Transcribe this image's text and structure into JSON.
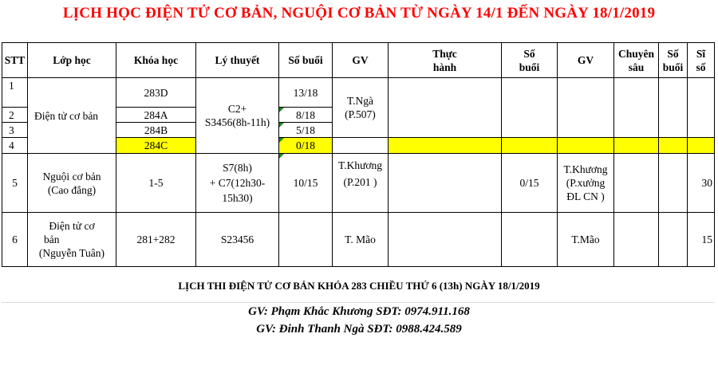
{
  "title": "LỊCH HỌC ĐIỆN TỬ CƠ BẢN, NGUỘI CƠ BẢN TỪ NGÀY 14/1 ĐẾN NGÀY 18/1/2019",
  "headers": {
    "stt": "STT",
    "lop_hoc": "Lớp học",
    "khoa_hoc": "Khóa học",
    "ly_thuyet": "Lý thuyết",
    "so_buoi": "Số buổi",
    "gv": "GV",
    "thuc_hanh_1": "Thực",
    "thuc_hanh_2": "hành",
    "so_buoi2_1": "Số",
    "so_buoi2_2": "buổi",
    "gv2": "GV",
    "chuyen_sau_1": "Chuyên",
    "chuyen_sau_2": "sâu",
    "so_buoi3_1": "Số",
    "so_buoi3_2": "buổi",
    "si_so_1": "Sĩ",
    "si_so_2": "số"
  },
  "rows": {
    "r1": {
      "stt": "1",
      "khoa": "283D",
      "so_buoi": "13/18"
    },
    "r2": {
      "stt": "2",
      "khoa": "284A",
      "so_buoi": "8/18"
    },
    "r3": {
      "stt": "3",
      "khoa": "284B",
      "so_buoi": "5/18"
    },
    "r4": {
      "stt": "4",
      "khoa": "284C",
      "so_buoi": "0/18"
    },
    "group1": {
      "lop": "Điện tử cơ bản",
      "ly_thuyet_1": "C2+",
      "ly_thuyet_2": "S3456(8h-11h)",
      "gv_1": "T.Ngà",
      "gv_2": "(P.507)"
    },
    "r5": {
      "stt": "5",
      "lop_1": "Nguội cơ bản",
      "lop_2": "(Cao đẳng)",
      "khoa": "1-5",
      "ly_1": "S7(8h)",
      "ly_2": "+ C7(12h30-",
      "ly_3": "15h30)",
      "so_buoi": "10/15",
      "gv_1": "T.Khương",
      "gv_2": "(P.201 )",
      "so_buoi2": "0/15",
      "gv2_1": "T.Khương",
      "gv2_2": "(P.xưởng",
      "gv2_3": "ĐL CN )",
      "si_so": "30"
    },
    "r6": {
      "stt": "6",
      "lop_1": "Điện tử cơ",
      "lop_2": "bản",
      "lop_3": "(Nguyễn Tuân)",
      "khoa": "281+282",
      "ly": "S23456",
      "gv": "T. Mão",
      "gv2": "T.Mão",
      "si_so": "15"
    }
  },
  "footer": {
    "exam": "LỊCH THI ĐIỆN TỬ CƠ BẢN  KHÓA 283 CHIỀU THỨ 6 (13h) NGÀY 18/1/2019",
    "gv1": "GV: Phạm Khắc Khương SĐT: 0974.911.168",
    "gv2": "GV: Đinh Thanh Ngà   SĐT: 0988.424.589"
  },
  "colors": {
    "title": "#ff0000",
    "highlight": "#ffff00",
    "comment_marker": "#1a8a1a"
  }
}
